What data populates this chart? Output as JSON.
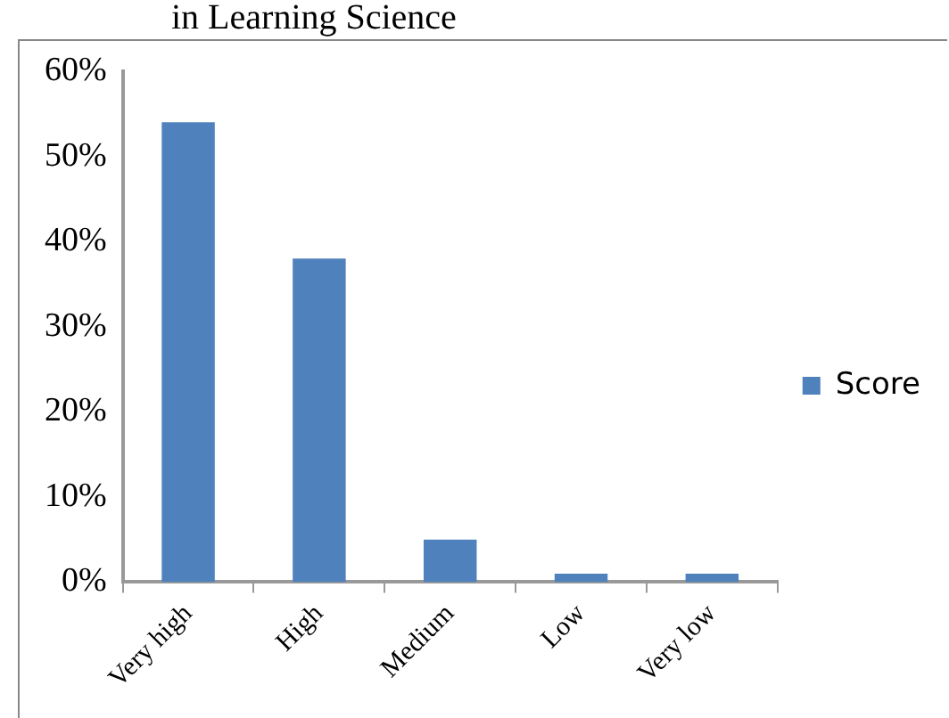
{
  "chart_data": {
    "type": "bar",
    "title": "in Learning Science",
    "categories": [
      "Very high",
      "High",
      "Medium",
      "Low",
      "Very low"
    ],
    "series": [
      {
        "name": "Score",
        "color": "#4f81bd",
        "values": [
          54,
          38,
          5,
          1,
          1
        ]
      }
    ],
    "ylim": [
      0,
      60
    ],
    "yticks": [
      {
        "value": 0,
        "label": "0%"
      },
      {
        "value": 10,
        "label": "10%"
      },
      {
        "value": 20,
        "label": "20%"
      },
      {
        "value": 30,
        "label": "30%"
      },
      {
        "value": 40,
        "label": "40%"
      },
      {
        "value": 50,
        "label": "50%"
      },
      {
        "value": 60,
        "label": "60%"
      }
    ],
    "grid": false,
    "legend": "right"
  }
}
